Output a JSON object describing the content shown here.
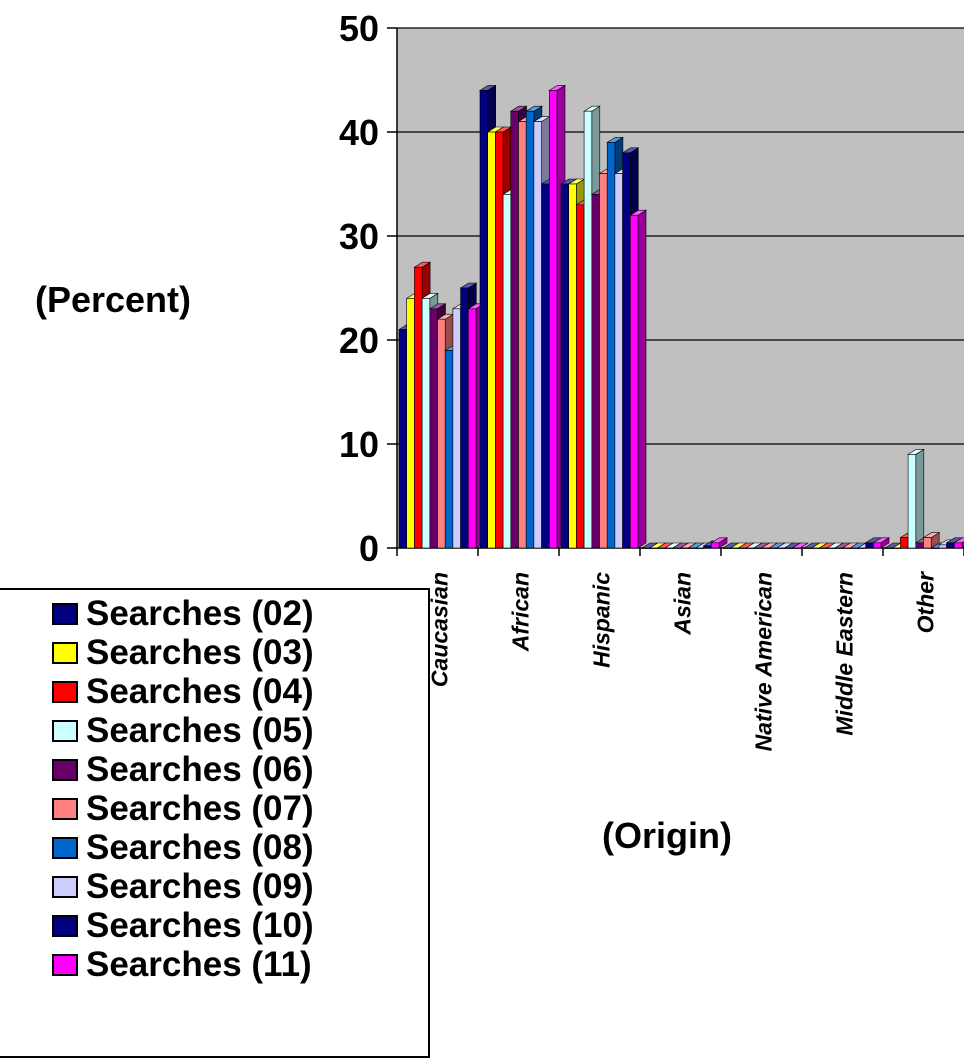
{
  "chart_data": {
    "type": "bar",
    "ylabel": "(Percent)",
    "xlabel": "(Origin)",
    "ylim": [
      0,
      50
    ],
    "yticks": [
      0,
      10,
      20,
      30,
      40,
      50
    ],
    "grid": true,
    "legend_position": "bottom-left",
    "plot_background": "#C0C0C0",
    "categories": [
      "Caucasian",
      "African",
      "Hispanic",
      "Asian",
      "Native American",
      "Middle Eastern",
      "Other"
    ],
    "series": [
      {
        "name": "Searches (02)",
        "color": "#000080",
        "values": [
          21,
          44,
          35,
          0,
          0,
          0,
          0
        ]
      },
      {
        "name": "Searches (03)",
        "color": "#FFFF00",
        "values": [
          24,
          40,
          35,
          0,
          0,
          0,
          0
        ]
      },
      {
        "name": "Searches (04)",
        "color": "#FF0000",
        "values": [
          27,
          40,
          33,
          0,
          0,
          0,
          1
        ]
      },
      {
        "name": "Searches (05)",
        "color": "#CCFFFF",
        "values": [
          24,
          34,
          42,
          0,
          0,
          0,
          9
        ]
      },
      {
        "name": "Searches (06)",
        "color": "#660066",
        "values": [
          23,
          42,
          34,
          0,
          0,
          0,
          0.5
        ]
      },
      {
        "name": "Searches (07)",
        "color": "#FF8080",
        "values": [
          22,
          41,
          36,
          0,
          0,
          0,
          1
        ]
      },
      {
        "name": "Searches (08)",
        "color": "#0066CC",
        "values": [
          19,
          42,
          39,
          0,
          0,
          0,
          0
        ]
      },
      {
        "name": "Searches (09)",
        "color": "#CCCCFF",
        "values": [
          23,
          41,
          36,
          0,
          0,
          0,
          0.3
        ]
      },
      {
        "name": "Searches (10)",
        "color": "#000080",
        "values": [
          25,
          35,
          38,
          0.2,
          0,
          0.5,
          0.5
        ]
      },
      {
        "name": "Searches (11)",
        "color": "#FF00FF",
        "values": [
          23,
          44,
          32,
          0.5,
          0,
          0.5,
          0.5
        ]
      }
    ]
  }
}
